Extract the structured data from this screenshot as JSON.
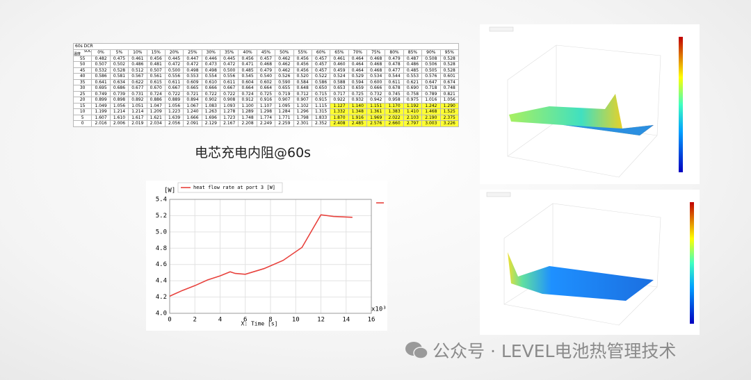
{
  "table": {
    "title": "60s DCR",
    "corner_top": "SOC",
    "corner_bottom": "温度",
    "columns": [
      "0%",
      "5%",
      "10%",
      "15%",
      "20%",
      "25%",
      "30%",
      "35%",
      "40%",
      "45%",
      "50%",
      "55%",
      "60%",
      "65%",
      "70%",
      "75%",
      "80%",
      "85%",
      "90%",
      "95%"
    ],
    "rows": [
      {
        "label": "55",
        "values": [
          "0.482",
          "0.475",
          "0.461",
          "0.456",
          "0.445",
          "0.447",
          "0.446",
          "0.445",
          "0.456",
          "0.457",
          "0.462",
          "0.456",
          "0.457",
          "0.461",
          "0.464",
          "0.468",
          "0.479",
          "0.487",
          "0.508",
          "0.528"
        ]
      },
      {
        "label": "50",
        "values": [
          "0.507",
          "0.502",
          "0.486",
          "0.481",
          "0.472",
          "0.472",
          "0.473",
          "0.472",
          "0.471",
          "0.468",
          "0.462",
          "0.456",
          "0.457",
          "0.460",
          "0.464",
          "0.468",
          "0.478",
          "0.486",
          "0.506",
          "0.528"
        ]
      },
      {
        "label": "45",
        "values": [
          "0.532",
          "0.528",
          "0.512",
          "0.507",
          "0.500",
          "0.498",
          "0.498",
          "0.500",
          "0.485",
          "0.479",
          "0.462",
          "0.456",
          "0.457",
          "0.459",
          "0.464",
          "0.468",
          "0.477",
          "0.485",
          "0.505",
          "0.528"
        ]
      },
      {
        "label": "40",
        "values": [
          "0.586",
          "0.581",
          "0.567",
          "0.561",
          "0.556",
          "0.553",
          "0.554",
          "0.556",
          "0.545",
          "0.540",
          "0.526",
          "0.520",
          "0.522",
          "0.524",
          "0.529",
          "0.534",
          "0.544",
          "0.553",
          "0.576",
          "0.601"
        ]
      },
      {
        "label": "35",
        "values": [
          "0.641",
          "0.634",
          "0.622",
          "0.615",
          "0.611",
          "0.609",
          "0.610",
          "0.611",
          "0.604",
          "0.602",
          "0.590",
          "0.584",
          "0.586",
          "0.588",
          "0.594",
          "0.600",
          "0.611",
          "0.621",
          "0.647",
          "0.674"
        ]
      },
      {
        "label": "30",
        "values": [
          "0.695",
          "0.686",
          "0.677",
          "0.670",
          "0.667",
          "0.665",
          "0.666",
          "0.667",
          "0.664",
          "0.664",
          "0.655",
          "0.648",
          "0.650",
          "0.653",
          "0.659",
          "0.666",
          "0.678",
          "0.690",
          "0.718",
          "0.748"
        ]
      },
      {
        "label": "25",
        "values": [
          "0.749",
          "0.739",
          "0.731",
          "0.724",
          "0.722",
          "0.721",
          "0.722",
          "0.722",
          "0.724",
          "0.725",
          "0.719",
          "0.712",
          "0.715",
          "0.717",
          "0.725",
          "0.732",
          "0.745",
          "0.758",
          "0.789",
          "0.821"
        ]
      },
      {
        "label": "20",
        "values": [
          "0.899",
          "0.898",
          "0.892",
          "0.886",
          "0.889",
          "0.894",
          "0.902",
          "0.908",
          "0.912",
          "0.916",
          "0.907",
          "0.907",
          "0.915",
          "0.922",
          "0.932",
          "0.942",
          "0.958",
          "0.975",
          "1.016",
          "1.056"
        ]
      },
      {
        "label": "15",
        "values": [
          "1.049",
          "1.056",
          "1.051",
          "1.047",
          "1.056",
          "1.067",
          "1.083",
          "1.093",
          "1.100",
          "1.107",
          "1.095",
          "1.102",
          "1.115",
          "1.127",
          "1.140",
          "1.151",
          "1.170",
          "1.192",
          "1.242",
          "1.290"
        ]
      },
      {
        "label": "10",
        "values": [
          "1.199",
          "1.214",
          "1.214",
          "1.209",
          "1.223",
          "1.240",
          "1.263",
          "1.278",
          "1.289",
          "1.298",
          "1.284",
          "1.296",
          "1.315",
          "1.332",
          "1.348",
          "1.361",
          "1.383",
          "1.410",
          "1.468",
          "1.525"
        ]
      },
      {
        "label": "5",
        "values": [
          "1.607",
          "1.610",
          "1.617",
          "1.621",
          "1.639",
          "1.666",
          "1.696",
          "1.723",
          "1.748",
          "1.774",
          "1.771",
          "1.798",
          "1.833",
          "1.870",
          "1.916",
          "1.969",
          "2.022",
          "2.103",
          "2.190",
          "2.375"
        ]
      },
      {
        "label": "0",
        "values": [
          "2.016",
          "2.006",
          "2.019",
          "2.034",
          "2.056",
          "2.091",
          "2.129",
          "2.167",
          "2.208",
          "2.249",
          "2.259",
          "2.301",
          "2.352",
          "2.408",
          "2.485",
          "2.576",
          "2.660",
          "2.797",
          "3.003",
          "3.226"
        ]
      }
    ]
  },
  "caption": "电芯充电内阻@60s",
  "chart_data": {
    "type": "line",
    "y_label": "[W]",
    "x_label": "X: Time [s]",
    "x_multiplier": "x10³",
    "x": [
      0,
      1,
      2,
      3,
      4,
      4.8,
      5.2,
      6,
      7.5,
      9,
      10.5,
      12,
      13,
      14.5
    ],
    "series": [
      {
        "name": "heat flow rate at port 3 [W]",
        "color": "#e8413c",
        "values": [
          4.21,
          4.28,
          4.34,
          4.41,
          4.46,
          4.51,
          4.49,
          4.48,
          4.55,
          4.65,
          4.81,
          5.21,
          5.19,
          5.18
        ]
      }
    ],
    "xlim": [
      0,
      16
    ],
    "xticks": [
      0,
      2,
      4,
      6,
      8,
      10,
      12,
      14,
      16
    ],
    "ylim": [
      4.0,
      5.4
    ],
    "yticks": [
      {
        "value": 4.0,
        "label": "4.0"
      },
      {
        "value": 4.2,
        "label": "4.2"
      },
      {
        "value": 4.4,
        "label": "4.4"
      },
      {
        "value": 4.6,
        "label": "4.6"
      },
      {
        "value": 4.8,
        "label": "4.8"
      },
      {
        "value": 5.0,
        "label": "5.0"
      },
      {
        "value": 5.2,
        "label": "5.2"
      },
      {
        "value": 5.4,
        "label": "5.4"
      }
    ],
    "grid": true
  },
  "watermark": "公众号 · LEVEL电池热管理技术"
}
